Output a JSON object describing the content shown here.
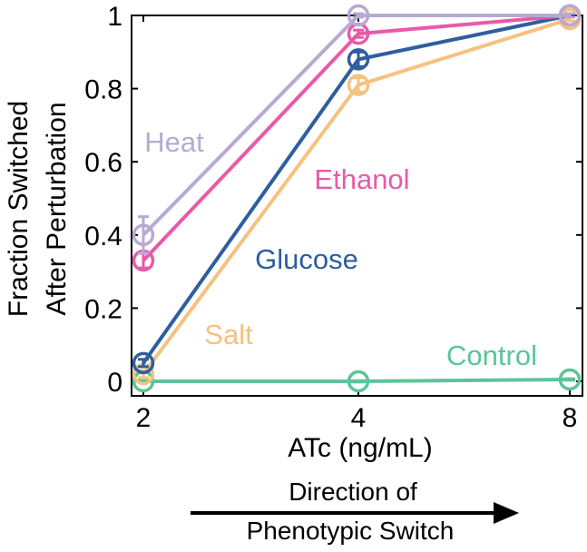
{
  "chart_data": {
    "type": "line",
    "title": "",
    "xlabel": "ATc (ng/mL)",
    "ylabel": [
      "Fraction Switched",
      "After Perturbation"
    ],
    "x": [
      2,
      4,
      8
    ],
    "x_scale": "log2",
    "xlim": [
      2,
      8
    ],
    "ylim": [
      0,
      1
    ],
    "y_ticks": [
      0,
      0.2,
      0.4,
      0.6,
      0.8,
      1
    ],
    "y_tick_labels": [
      "0",
      "0.2",
      "0.4",
      "0.6",
      "0.8",
      "1"
    ],
    "x_tick_labels": [
      "2",
      "4",
      "8"
    ],
    "grid": false,
    "markers": "open-circle",
    "series": [
      {
        "name": "Heat",
        "color": "#b8a9d4",
        "values": [
          0.4,
          1.0,
          1.0
        ],
        "errors": [
          0.05,
          0.005,
          0.005
        ]
      },
      {
        "name": "Ethanol",
        "color": "#e85aa8",
        "values": [
          0.33,
          0.95,
          1.0
        ],
        "errors": [
          0.02,
          0.01,
          0.005
        ]
      },
      {
        "name": "Glucose",
        "color": "#2e5e9e",
        "values": [
          0.05,
          0.88,
          1.0
        ],
        "errors": [
          0.01,
          0.02,
          0.005
        ]
      },
      {
        "name": "Salt",
        "color": "#f5c27f",
        "values": [
          0.02,
          0.81,
          0.99
        ],
        "errors": [
          0.01,
          0.02,
          0.005
        ]
      },
      {
        "name": "Control",
        "color": "#5cc49a",
        "values": [
          0.0,
          0.0,
          0.005
        ],
        "errors": [
          0.002,
          0.002,
          0.002
        ]
      }
    ],
    "direction_arrow": {
      "label_line1": "Direction of",
      "label_line2": "Phenotypic Switch",
      "pointing": "right"
    }
  }
}
